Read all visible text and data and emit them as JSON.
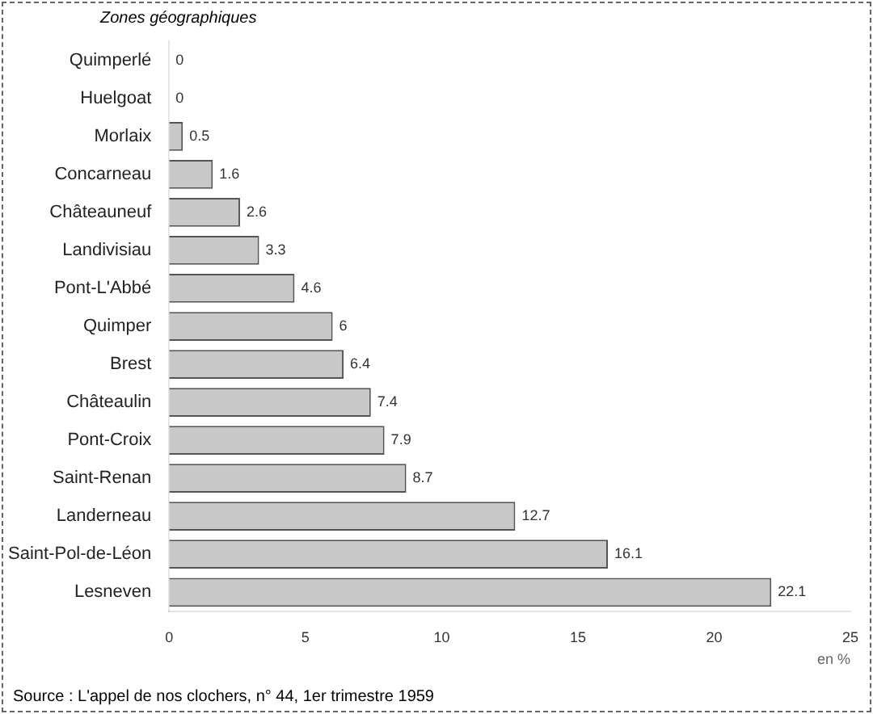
{
  "chart_data": {
    "type": "bar",
    "orientation": "horizontal",
    "ylabel": "Zones géographiques",
    "xlabel": "en %",
    "categories": [
      "Quimperlé",
      "Huelgoat",
      "Morlaix",
      "Concarneau",
      "Châteauneuf",
      "Landivisiau",
      "Pont-L'Abbé",
      "Quimper",
      "Brest",
      "Châteaulin",
      "Pont-Croix",
      "Saint-Renan",
      "Landerneau",
      "Saint-Pol-de-Léon",
      "Lesneven"
    ],
    "values": [
      0,
      0,
      0.5,
      1.6,
      2.6,
      3.3,
      4.6,
      6.0,
      6.4,
      7.4,
      7.9,
      8.7,
      12.7,
      16.1,
      22.1
    ],
    "color": "#c8c8c8",
    "data_labels": true,
    "grid": false,
    "legend": false,
    "xlim": [
      0,
      25
    ],
    "xticks": [
      0,
      5,
      10,
      15,
      20,
      25
    ],
    "annotations": [
      "Source : L'appel de nos clochers, n° 44, 1er trimestre 1959"
    ]
  }
}
